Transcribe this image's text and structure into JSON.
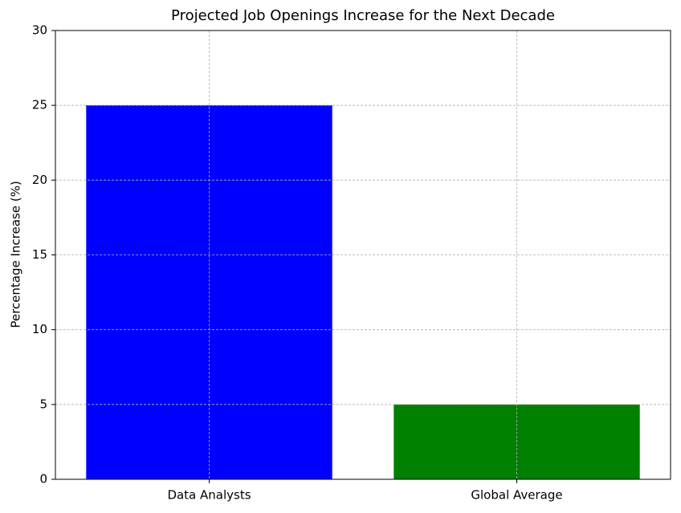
{
  "chart_data": {
    "type": "bar",
    "title": "Projected Job Openings Increase for the Next Decade",
    "y_label": "Percentage Increase (%)",
    "categories": [
      "Data Analysts",
      "Global Average"
    ],
    "values": [
      25,
      5
    ],
    "colors": [
      "#0000ff",
      "#008000"
    ],
    "ylim": [
      0,
      30
    ],
    "yticks": [
      0,
      5,
      10,
      15,
      20,
      25,
      30
    ],
    "grid": true
  }
}
